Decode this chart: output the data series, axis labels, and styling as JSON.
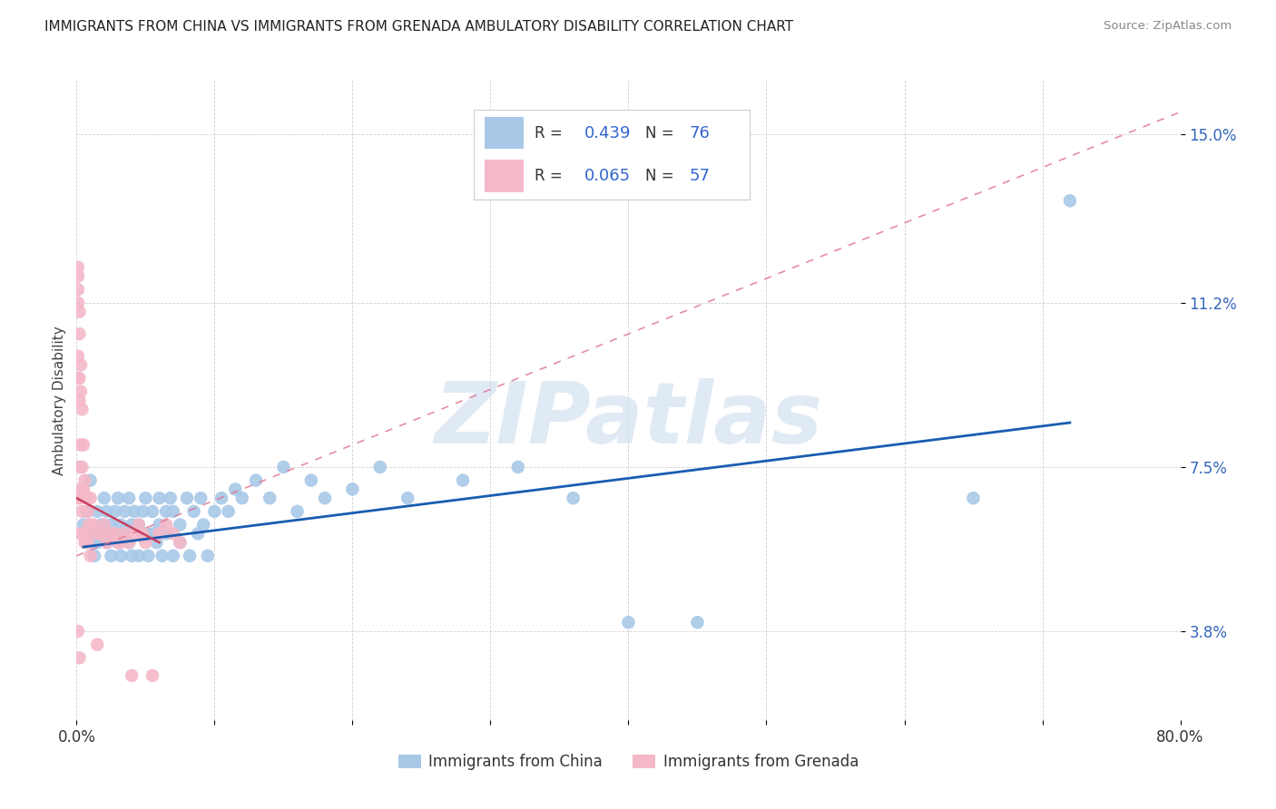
{
  "title": "IMMIGRANTS FROM CHINA VS IMMIGRANTS FROM GRENADA AMBULATORY DISABILITY CORRELATION CHART",
  "source": "Source: ZipAtlas.com",
  "xlabel_china": "Immigrants from China",
  "xlabel_grenada": "Immigrants from Grenada",
  "ylabel": "Ambulatory Disability",
  "xlim": [
    0.0,
    0.8
  ],
  "ylim": [
    0.018,
    0.162
  ],
  "ytick_positions": [
    0.038,
    0.075,
    0.112,
    0.15
  ],
  "ytick_labels": [
    "3.8%",
    "7.5%",
    "11.2%",
    "15.0%"
  ],
  "china_R": 0.439,
  "china_N": 76,
  "grenada_R": 0.065,
  "grenada_N": 57,
  "china_color": "#a8c8e8",
  "china_line_color": "#1a5cb0",
  "grenada_color": "#f4b8c8",
  "grenada_line_color": "#e07090",
  "watermark": "ZIPatlas",
  "watermark_color": "#ccddef",
  "china_scatter_x": [
    0.005,
    0.008,
    0.01,
    0.01,
    0.012,
    0.013,
    0.015,
    0.015,
    0.015,
    0.018,
    0.02,
    0.02,
    0.022,
    0.022,
    0.025,
    0.025,
    0.028,
    0.028,
    0.03,
    0.03,
    0.032,
    0.032,
    0.035,
    0.035,
    0.038,
    0.038,
    0.04,
    0.04,
    0.042,
    0.045,
    0.045,
    0.048,
    0.05,
    0.05,
    0.052,
    0.055,
    0.055,
    0.058,
    0.06,
    0.06,
    0.062,
    0.065,
    0.065,
    0.068,
    0.07,
    0.07,
    0.075,
    0.075,
    0.08,
    0.082,
    0.085,
    0.088,
    0.09,
    0.092,
    0.095,
    0.1,
    0.105,
    0.11,
    0.115,
    0.12,
    0.13,
    0.14,
    0.15,
    0.16,
    0.17,
    0.18,
    0.2,
    0.22,
    0.24,
    0.28,
    0.32,
    0.36,
    0.4,
    0.45,
    0.65,
    0.72
  ],
  "china_scatter_y": [
    0.062,
    0.065,
    0.058,
    0.072,
    0.06,
    0.055,
    0.06,
    0.065,
    0.058,
    0.062,
    0.068,
    0.06,
    0.058,
    0.065,
    0.062,
    0.055,
    0.065,
    0.06,
    0.058,
    0.068,
    0.062,
    0.055,
    0.065,
    0.06,
    0.058,
    0.068,
    0.062,
    0.055,
    0.065,
    0.062,
    0.055,
    0.065,
    0.06,
    0.068,
    0.055,
    0.065,
    0.06,
    0.058,
    0.068,
    0.062,
    0.055,
    0.065,
    0.06,
    0.068,
    0.055,
    0.065,
    0.062,
    0.058,
    0.068,
    0.055,
    0.065,
    0.06,
    0.068,
    0.062,
    0.055,
    0.065,
    0.068,
    0.065,
    0.07,
    0.068,
    0.072,
    0.068,
    0.075,
    0.065,
    0.072,
    0.068,
    0.07,
    0.075,
    0.068,
    0.072,
    0.075,
    0.068,
    0.04,
    0.04,
    0.068,
    0.135
  ],
  "grenada_scatter_x": [
    0.001,
    0.001,
    0.001,
    0.001,
    0.001,
    0.001,
    0.001,
    0.001,
    0.002,
    0.002,
    0.002,
    0.002,
    0.002,
    0.002,
    0.002,
    0.003,
    0.003,
    0.003,
    0.003,
    0.003,
    0.004,
    0.004,
    0.004,
    0.005,
    0.005,
    0.005,
    0.006,
    0.006,
    0.007,
    0.007,
    0.008,
    0.008,
    0.009,
    0.01,
    0.01,
    0.012,
    0.015,
    0.015,
    0.018,
    0.02,
    0.022,
    0.025,
    0.028,
    0.03,
    0.032,
    0.035,
    0.038,
    0.04,
    0.042,
    0.045,
    0.048,
    0.05,
    0.055,
    0.06,
    0.065,
    0.07,
    0.075
  ],
  "grenada_scatter_y": [
    0.12,
    0.118,
    0.115,
    0.112,
    0.1,
    0.095,
    0.068,
    0.038,
    0.11,
    0.105,
    0.095,
    0.09,
    0.075,
    0.068,
    0.032,
    0.098,
    0.092,
    0.08,
    0.07,
    0.06,
    0.088,
    0.075,
    0.065,
    0.08,
    0.07,
    0.06,
    0.072,
    0.058,
    0.068,
    0.06,
    0.065,
    0.058,
    0.062,
    0.068,
    0.055,
    0.062,
    0.06,
    0.035,
    0.06,
    0.062,
    0.058,
    0.06,
    0.06,
    0.058,
    0.058,
    0.06,
    0.058,
    0.028,
    0.06,
    0.062,
    0.06,
    0.058,
    0.028,
    0.06,
    0.062,
    0.06,
    0.058
  ]
}
